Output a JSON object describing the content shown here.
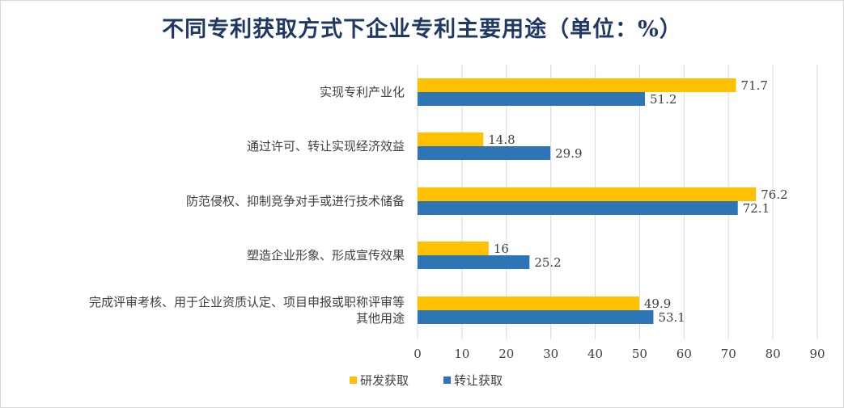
{
  "chart_data": {
    "type": "bar",
    "orientation": "horizontal",
    "title": "不同专利获取方式下企业专利主要用途（单位：%）",
    "categories": [
      [
        "实现专利产业化"
      ],
      [
        "通过许可、转让实现经济效益"
      ],
      [
        "防范侵权、抑制竞争对手或进行技术储备"
      ],
      [
        "塑造企业形象、形成宣传效果"
      ],
      [
        "完成评审考核、用于企业资质认定、项目申报或职称评审等",
        "其他用途"
      ]
    ],
    "series": [
      {
        "name": "研发获取",
        "color": "#ffc000",
        "values": [
          71.7,
          14.8,
          76.2,
          16,
          49.9
        ],
        "labels": [
          "71.7",
          "14.8",
          "76.2",
          "16",
          "49.9"
        ]
      },
      {
        "name": "转让获取",
        "color": "#2e75b6",
        "values": [
          51.2,
          29.9,
          72.1,
          25.2,
          53.1
        ],
        "labels": [
          "51.2",
          "29.9",
          "72.1",
          "25.2",
          "53.1"
        ]
      }
    ],
    "xlim": [
      0,
      90
    ],
    "xticks": [
      "0",
      "10",
      "20",
      "30",
      "40",
      "50",
      "60",
      "70",
      "80",
      "90"
    ],
    "grid": true,
    "legend_position": "bottom"
  }
}
